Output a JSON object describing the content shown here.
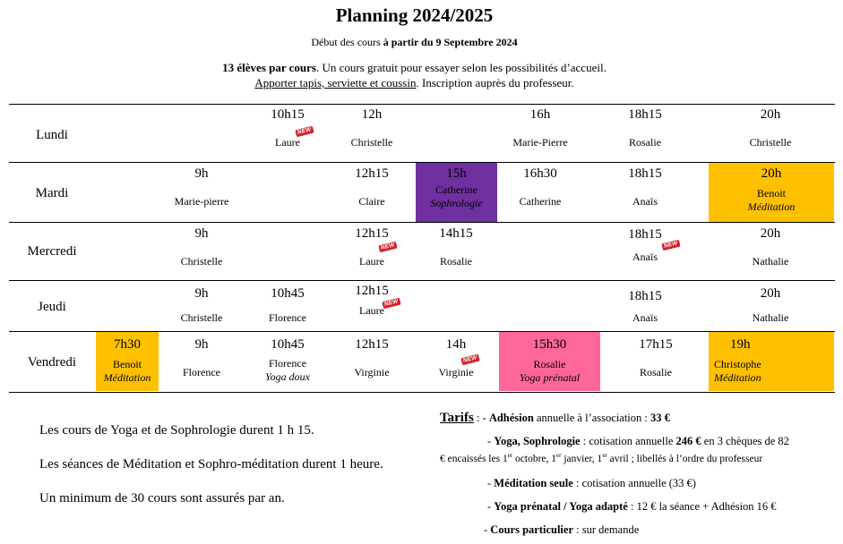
{
  "header": {
    "title": "Planning 2024/2025",
    "start_prefix": "Début des cours ",
    "start_bold": "à partir du 9 Septembre 2024",
    "students_bold": "13 élèves par cours",
    "students_rest": ". Un cours gratuit pour essayer selon les possibilités d’accueil.",
    "bring_underlined": "Apporter tapis, serviette et coussin",
    "bring_rest": ". Inscription auprès du professeur."
  },
  "new_badge": "NEW",
  "days": {
    "lundi": "Lundi",
    "mardi": "Mardi",
    "mercredi": "Mercredi",
    "jeudi": "Jeudi",
    "vendredi": "Vendredi"
  },
  "schedule": {
    "lundi": [
      {
        "time": "10h15",
        "name": "Laure"
      },
      {
        "time": "12h",
        "name": "Christelle"
      },
      {
        "time": "16h",
        "name": "Marie-Pierre"
      },
      {
        "time": "18h15",
        "name": "Rosalie"
      },
      {
        "time": "20h",
        "name": "Christelle"
      }
    ],
    "mardi": [
      {
        "time": "9h",
        "name": "Marie-pierre"
      },
      {
        "time": "12h15",
        "name": "Claire"
      },
      {
        "time": "15h",
        "name": "Catherine",
        "type": "Sophrologie"
      },
      {
        "time": "16h30",
        "name": "Catherine"
      },
      {
        "time": "18h15",
        "name": "Anaïs"
      },
      {
        "time": "20h",
        "name": "Benoit",
        "type": "Méditation"
      }
    ],
    "mercredi": [
      {
        "time": "9h",
        "name": "Christelle"
      },
      {
        "time": "12h15",
        "name": "Laure"
      },
      {
        "time": "14h15",
        "name": "Rosalie"
      },
      {
        "time": "18h15",
        "name": "Anaïs"
      },
      {
        "time": "20h",
        "name": "Nathalie"
      }
    ],
    "jeudi": [
      {
        "time": "9h",
        "name": "Christelle"
      },
      {
        "time": "10h45",
        "name": "Florence"
      },
      {
        "time": "12h15",
        "name": "Laure"
      },
      {
        "time": "18h15",
        "name": "Anaïs"
      },
      {
        "time": "20h",
        "name": "Nathalie"
      }
    ],
    "vendredi": [
      {
        "time": "7h30",
        "name": "Benoit",
        "type": "Méditation"
      },
      {
        "time": "9h",
        "name": "Florence"
      },
      {
        "time": "10h45",
        "name": "Florence",
        "type": "Yoga doux"
      },
      {
        "time": "12h15",
        "name": "Virginie"
      },
      {
        "time": "14h",
        "name": "Virginie"
      },
      {
        "time": "15h30",
        "name": "Rosalie",
        "type": "Yoga prénatal"
      },
      {
        "time": "17h15",
        "name": "Rosalie"
      },
      {
        "time": "19h",
        "name": "Christophe",
        "type": "Méditation"
      }
    ]
  },
  "notes": [
    "Les cours de Yoga et de Sophrologie durent 1 h 15.",
    "Les séances de Méditation et Sophro-méditation durent 1 heure.",
    "Un minimum de 30 cours sont assurés par an."
  ],
  "tarifs": {
    "label": "Tarifs",
    "l1_pre": " : - ",
    "l1_bold": "Adhésion",
    "l1_mid": " annuelle à l’association : ",
    "l1_price": "33 €",
    "l2_pre": "- ",
    "l2_bold": "Yoga, Sophrologie",
    "l2_mid": " : cotisation annuelle ",
    "l2_price": "246 €",
    "l2_rest": " en 3 chèques de 82",
    "l3_a": "€ encaissés les 1",
    "l3_b": " octobre, 1",
    "l3_c": " janvier, 1",
    "l3_d": " avril ; libellés à l’ordre du professeur",
    "sup": "er",
    "l4_pre": "- ",
    "l4_bold": "Méditation seule",
    "l4_rest": " : cotisation annuelle (33 €)",
    "l5_pre": "- ",
    "l5_bold": "Yoga prénatal / Yoga adapté",
    "l5_rest": " : 12 € la séance + Adhésion 16 €",
    "l6_pre": "- ",
    "l6_bold": "Cours particulier",
    "l6_rest": " : sur demande"
  },
  "colors": {
    "sophrologie": "#7030a0",
    "meditation": "#ffc000",
    "prenatal": "#ff6699",
    "new_badge": "#d6202a"
  }
}
